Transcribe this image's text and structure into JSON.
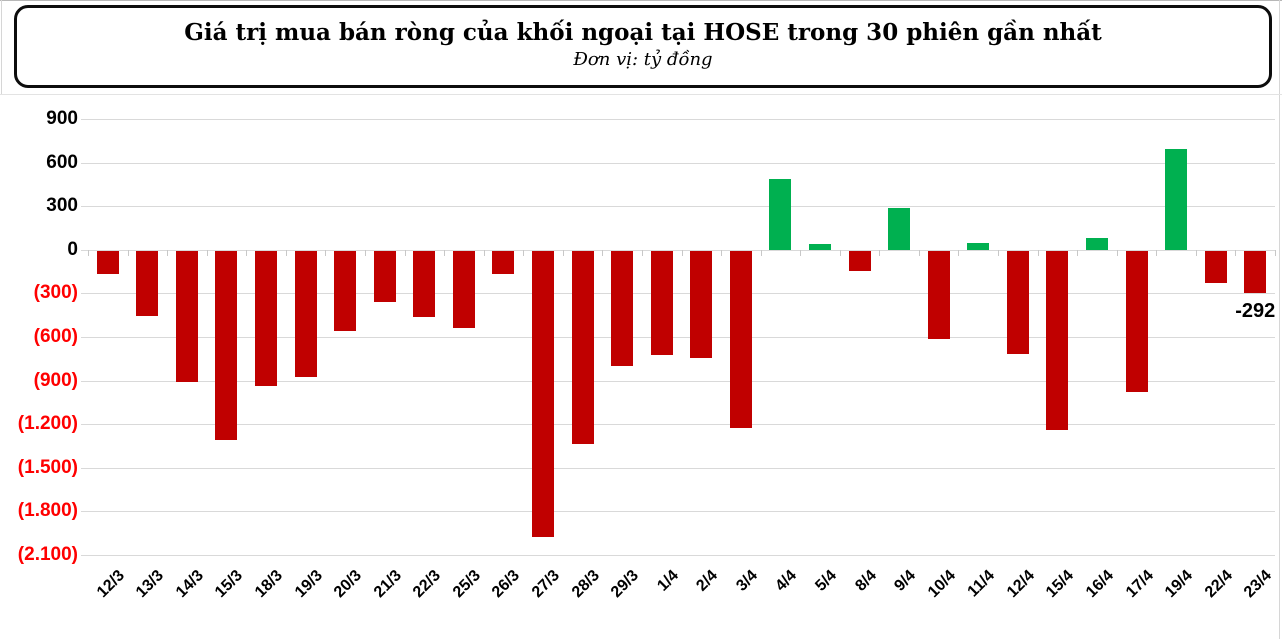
{
  "chart_data": {
    "type": "bar",
    "title": "Giá trị mua bán ròng của khối ngoại tại HOSE trong 30 phiên gần nhất",
    "subtitle": "Đơn vị: tỷ đồng",
    "xlabel": "",
    "ylabel": "",
    "ylim": [
      -2100,
      900
    ],
    "ytick_step": 300,
    "grid": true,
    "legend": "none",
    "categories": [
      "12/3",
      "13/3",
      "14/3",
      "15/3",
      "18/3",
      "19/3",
      "20/3",
      "21/3",
      "22/3",
      "25/3",
      "26/3",
      "27/3",
      "28/3",
      "29/3",
      "1/4",
      "2/4",
      "3/4",
      "4/4",
      "5/4",
      "8/4",
      "9/4",
      "10/4",
      "11/4",
      "12/4",
      "15/4",
      "16/4",
      "17/4",
      "19/4",
      "22/4",
      "23/4"
    ],
    "values": [
      -160,
      -450,
      -900,
      -1300,
      -930,
      -865,
      -555,
      -355,
      -455,
      -530,
      -160,
      -1970,
      -1330,
      -790,
      -720,
      -735,
      -1220,
      490,
      40,
      -140,
      285,
      -610,
      50,
      -710,
      -1235,
      80,
      -975,
      695,
      -220,
      -292
    ],
    "yticks": [
      {
        "value": 900,
        "label": "900"
      },
      {
        "value": 600,
        "label": "600"
      },
      {
        "value": 300,
        "label": "300"
      },
      {
        "value": 0,
        "label": "0"
      },
      {
        "value": -300,
        "label": "(300)"
      },
      {
        "value": -600,
        "label": "(600)"
      },
      {
        "value": -900,
        "label": "(900)"
      },
      {
        "value": -1200,
        "label": "(1.200)"
      },
      {
        "value": -1500,
        "label": "(1.500)"
      },
      {
        "value": -1800,
        "label": "(1.800)"
      },
      {
        "value": -2100,
        "label": "(2.100)"
      }
    ],
    "annotations": [
      {
        "category": "23/4",
        "text": "-292"
      }
    ],
    "colors": {
      "positive_bar": "#00B050",
      "negative_bar": "#C00000",
      "positive_tick_label": "#000000",
      "negative_tick_label": "#FF0000",
      "gridline": "#D9D9D9"
    }
  }
}
